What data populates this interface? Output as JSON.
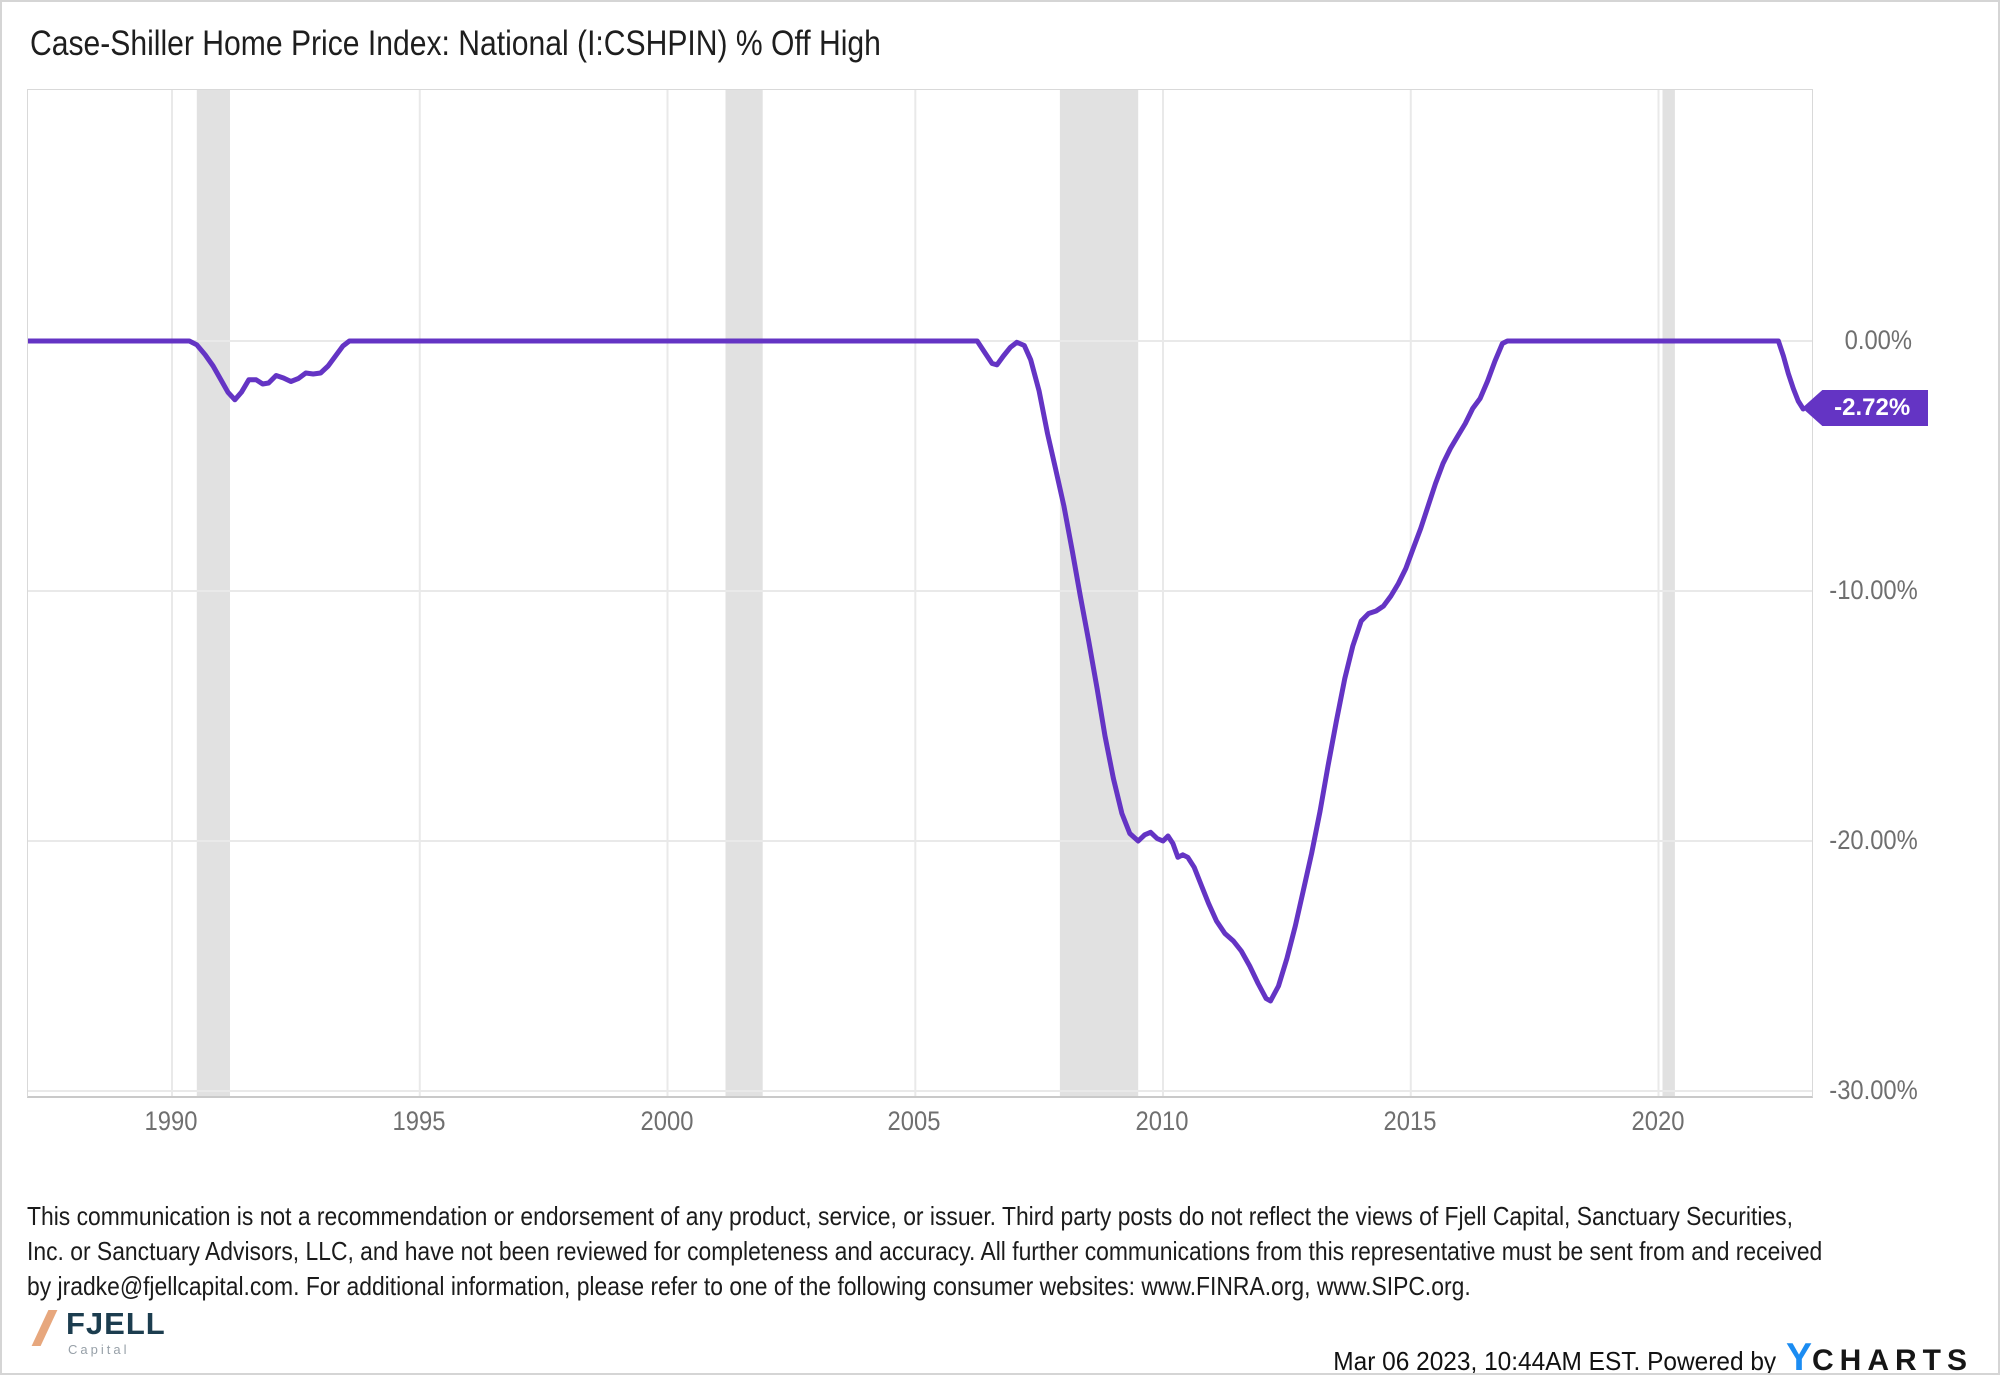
{
  "chart_data": {
    "type": "line",
    "title": "Case-Shiller Home Price Index: National (I:CSHPIN) % Off High",
    "xlabel": "",
    "ylabel": "",
    "x_tick_labels": [
      "1990",
      "1995",
      "2000",
      "2005",
      "2010",
      "2015",
      "2020"
    ],
    "x_tick_years": [
      1990,
      1995,
      2000,
      2005,
      2010,
      2015,
      2020
    ],
    "y_tick_labels": [
      "0.00%",
      "-10.00%",
      "-20.00%",
      "-30.00%"
    ],
    "y_tick_values": [
      0,
      -10,
      -20,
      -30
    ],
    "xlim": [
      1987.1,
      2023.0
    ],
    "ylim": [
      -30.2,
      10.0
    ],
    "grid": true,
    "legend": "none",
    "last_value_label": "-2.72%",
    "last_value": -2.72,
    "recession_bands": [
      [
        1990.5,
        1991.17
      ],
      [
        2001.17,
        2001.92
      ],
      [
        2007.92,
        2009.5
      ],
      [
        2020.08,
        2020.33
      ]
    ],
    "colors": {
      "line": "#6434c4",
      "recession_band": "#e1e1e1",
      "gridline": "#e9e9e9",
      "badge_bg": "#6434c4",
      "badge_text": "#ffffff"
    },
    "series": [
      {
        "name": "Case-Shiller Home Price Index: National (I:CSHPIN) % Off High",
        "points": [
          [
            1987.1,
            0
          ],
          [
            1990.35,
            0
          ],
          [
            1990.5,
            -0.15
          ],
          [
            1990.67,
            -0.55
          ],
          [
            1990.83,
            -1.0
          ],
          [
            1991.0,
            -1.6
          ],
          [
            1991.13,
            -2.05
          ],
          [
            1991.27,
            -2.35
          ],
          [
            1991.4,
            -2.05
          ],
          [
            1991.55,
            -1.55
          ],
          [
            1991.7,
            -1.55
          ],
          [
            1991.83,
            -1.72
          ],
          [
            1991.95,
            -1.68
          ],
          [
            1992.1,
            -1.38
          ],
          [
            1992.25,
            -1.48
          ],
          [
            1992.4,
            -1.62
          ],
          [
            1992.55,
            -1.5
          ],
          [
            1992.7,
            -1.28
          ],
          [
            1992.85,
            -1.32
          ],
          [
            1993.0,
            -1.28
          ],
          [
            1993.15,
            -1.0
          ],
          [
            1993.3,
            -0.6
          ],
          [
            1993.45,
            -0.2
          ],
          [
            1993.58,
            0
          ],
          [
            2006.25,
            0
          ],
          [
            2006.4,
            -0.45
          ],
          [
            2006.55,
            -0.9
          ],
          [
            2006.65,
            -0.95
          ],
          [
            2006.78,
            -0.6
          ],
          [
            2006.92,
            -0.25
          ],
          [
            2007.05,
            -0.05
          ],
          [
            2007.2,
            -0.18
          ],
          [
            2007.33,
            -0.75
          ],
          [
            2007.5,
            -2.0
          ],
          [
            2007.67,
            -3.7
          ],
          [
            2007.83,
            -5.1
          ],
          [
            2008.0,
            -6.6
          ],
          [
            2008.17,
            -8.4
          ],
          [
            2008.33,
            -10.2
          ],
          [
            2008.5,
            -12.0
          ],
          [
            2008.67,
            -13.9
          ],
          [
            2008.83,
            -15.8
          ],
          [
            2009.0,
            -17.5
          ],
          [
            2009.17,
            -18.9
          ],
          [
            2009.33,
            -19.7
          ],
          [
            2009.5,
            -20.0
          ],
          [
            2009.63,
            -19.75
          ],
          [
            2009.75,
            -19.65
          ],
          [
            2009.88,
            -19.9
          ],
          [
            2010.0,
            -20.0
          ],
          [
            2010.1,
            -19.8
          ],
          [
            2010.2,
            -20.1
          ],
          [
            2010.3,
            -20.65
          ],
          [
            2010.4,
            -20.55
          ],
          [
            2010.5,
            -20.65
          ],
          [
            2010.63,
            -21.05
          ],
          [
            2010.78,
            -21.8
          ],
          [
            2010.92,
            -22.5
          ],
          [
            2011.08,
            -23.2
          ],
          [
            2011.25,
            -23.7
          ],
          [
            2011.42,
            -24.0
          ],
          [
            2011.58,
            -24.4
          ],
          [
            2011.75,
            -25.0
          ],
          [
            2011.92,
            -25.7
          ],
          [
            2012.08,
            -26.3
          ],
          [
            2012.17,
            -26.4
          ],
          [
            2012.33,
            -25.8
          ],
          [
            2012.5,
            -24.7
          ],
          [
            2012.67,
            -23.4
          ],
          [
            2012.83,
            -22.0
          ],
          [
            2013.0,
            -20.5
          ],
          [
            2013.17,
            -18.8
          ],
          [
            2013.33,
            -17.0
          ],
          [
            2013.5,
            -15.2
          ],
          [
            2013.67,
            -13.5
          ],
          [
            2013.83,
            -12.2
          ],
          [
            2014.0,
            -11.2
          ],
          [
            2014.15,
            -10.9
          ],
          [
            2014.3,
            -10.8
          ],
          [
            2014.45,
            -10.6
          ],
          [
            2014.6,
            -10.2
          ],
          [
            2014.75,
            -9.7
          ],
          [
            2014.9,
            -9.1
          ],
          [
            2015.05,
            -8.3
          ],
          [
            2015.2,
            -7.5
          ],
          [
            2015.35,
            -6.6
          ],
          [
            2015.5,
            -5.7
          ],
          [
            2015.65,
            -4.9
          ],
          [
            2015.8,
            -4.3
          ],
          [
            2015.95,
            -3.8
          ],
          [
            2016.1,
            -3.3
          ],
          [
            2016.25,
            -2.7
          ],
          [
            2016.4,
            -2.3
          ],
          [
            2016.55,
            -1.6
          ],
          [
            2016.7,
            -0.8
          ],
          [
            2016.85,
            -0.1
          ],
          [
            2016.95,
            0
          ],
          [
            2022.42,
            0
          ],
          [
            2022.52,
            -0.6
          ],
          [
            2022.62,
            -1.3
          ],
          [
            2022.72,
            -1.9
          ],
          [
            2022.82,
            -2.4
          ],
          [
            2022.92,
            -2.72
          ]
        ]
      }
    ]
  },
  "disclaimer": {
    "lines": [
      "This communication is not a recommendation or endorsement of any product, service, or issuer. Third party posts do not reflect the views of Fjell Capital, Sanctuary Securities,",
      "Inc. or Sanctuary Advisors, LLC, and have not been reviewed for completeness and accuracy. All further communications from this representative must be sent from and received",
      "by jradke@fjellcapital.com. For additional information, please refer to one of the following consumer websites: www.FINRA.org, www.SIPC.org."
    ]
  },
  "footer": {
    "fjell_name": "FJELL",
    "fjell_sub": "Capital",
    "timestamp": "Mar 06 2023, 10:44AM EST. Powered by",
    "ycharts_y": "Y",
    "ycharts_rest": "CHARTS"
  }
}
